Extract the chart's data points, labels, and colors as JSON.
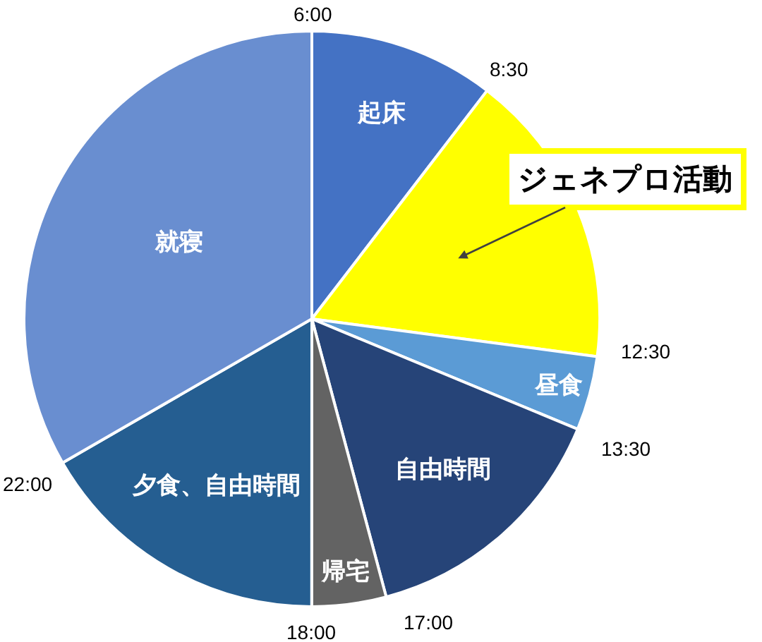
{
  "chart_data": {
    "type": "pie",
    "categories": [
      "起床",
      "ジェネプロ活動",
      "昼食",
      "自由時間",
      "帰宅",
      "夕食、自由時間",
      "就寝"
    ],
    "values": [
      10.42,
      16.67,
      4.17,
      14.58,
      4.17,
      16.66,
      33.33
    ],
    "colors": [
      "#4472c4",
      "#ffff00",
      "#5b9bd5",
      "#264478",
      "#636363",
      "#255e91",
      "#698ed0"
    ],
    "annotations": [
      "6:00",
      "8:30",
      "12:30",
      "13:30",
      "17:00",
      "18:00",
      "22:00"
    ],
    "legend": false
  }
}
